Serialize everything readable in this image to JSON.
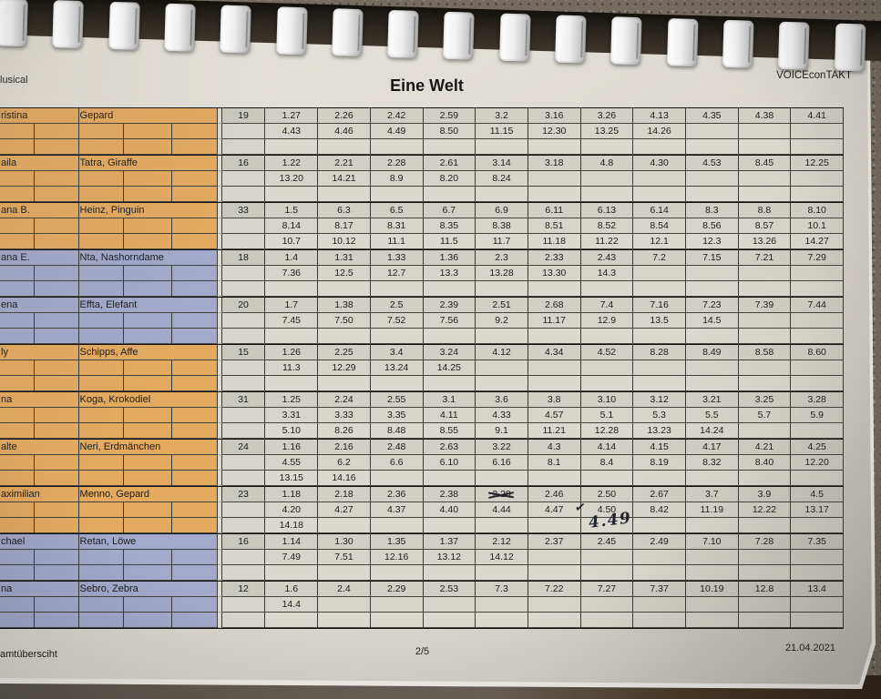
{
  "page": {
    "header_left": "lusical",
    "title": "Eine Welt",
    "header_right": "VOICEconTAKT"
  },
  "footer": {
    "left": "amtübersciht",
    "center": "2/5",
    "right": "21.04.2021"
  },
  "colors": {
    "orange_row": "#e3aa60",
    "blue_row": "#a2a9ca",
    "paper": "#ddd9d2"
  },
  "binding": {
    "clip_count": 16
  },
  "handwriting": {
    "check_mark": "✓",
    "note": "4.49"
  },
  "table": {
    "blocks": [
      {
        "performer": "ristina",
        "role": "Gepard",
        "count": "19",
        "color": "orange",
        "rows": [
          [
            "1.27",
            "2.26",
            "2.42",
            "2.59",
            "3.2",
            "3.16",
            "3.26",
            "4.13",
            "4.35",
            "4.38",
            "4.41"
          ],
          [
            "4.43",
            "4.46",
            "4.49",
            "8.50",
            "11.15",
            "12.30",
            "13.25",
            "14.26"
          ],
          []
        ]
      },
      {
        "performer": "aila",
        "role": "Tatra, Giraffe",
        "count": "16",
        "color": "orange",
        "rows": [
          [
            "1.22",
            "2.21",
            "2.28",
            "2.61",
            "3.14",
            "3.18",
            "4.8",
            "4.30",
            "4.53",
            "8.45",
            "12.25"
          ],
          [
            "13.20",
            "14.21",
            "8.9",
            "8.20",
            "8.24"
          ],
          []
        ]
      },
      {
        "performer": "ana B.",
        "role": "Heinz, Pinguin",
        "count": "33",
        "color": "orange",
        "rows": [
          [
            "1.5",
            "6.3",
            "6.5",
            "6.7",
            "6.9",
            "6.11",
            "6.13",
            "6.14",
            "8.3",
            "8.8",
            "8.10"
          ],
          [
            "8.14",
            "8.17",
            "8.31",
            "8.35",
            "8.38",
            "8.51",
            "8.52",
            "8.54",
            "8.56",
            "8.57",
            "10.1"
          ],
          [
            "10.7",
            "10.12",
            "11.1",
            "11.5",
            "11.7",
            "11.18",
            "11.22",
            "12.1",
            "12.3",
            "13.26",
            "14.27"
          ]
        ]
      },
      {
        "performer": "ana E.",
        "role": "Nta, Nashorndame",
        "count": "18",
        "color": "blue",
        "rows": [
          [
            "1.4",
            "1.31",
            "1.33",
            "1.36",
            "2.3",
            "2.33",
            "2.43",
            "7.2",
            "7.15",
            "7.21",
            "7.29"
          ],
          [
            "7.36",
            "12.5",
            "12.7",
            "13.3",
            "13.28",
            "13.30",
            "14.3"
          ],
          []
        ]
      },
      {
        "performer": "ena",
        "role": "Effta, Elefant",
        "count": "20",
        "color": "blue",
        "rows": [
          [
            "1.7",
            "1.38",
            "2.5",
            "2.39",
            "2.51",
            "2.68",
            "7.4",
            "7.16",
            "7.23",
            "7.39",
            "7.44"
          ],
          [
            "7.45",
            "7.50",
            "7.52",
            "7.56",
            "9.2",
            "11.17",
            "12.9",
            "13.5",
            "14.5"
          ],
          []
        ]
      },
      {
        "performer": "ly",
        "role": "Schipps, Affe",
        "count": "15",
        "color": "orange",
        "rows": [
          [
            "1.26",
            "2.25",
            "3.4",
            "3.24",
            "4.12",
            "4.34",
            "4.52",
            "8.28",
            "8.49",
            "8.58",
            "8.60"
          ],
          [
            "11.3",
            "12.29",
            "13.24",
            "14.25"
          ],
          []
        ]
      },
      {
        "performer": "na",
        "role": "Koga, Krokodiel",
        "count": "31",
        "color": "orange",
        "rows": [
          [
            "1.25",
            "2.24",
            "2.55",
            "3.1",
            "3.6",
            "3.8",
            "3.10",
            "3.12",
            "3.21",
            "3.25",
            "3.28"
          ],
          [
            "3.31",
            "3.33",
            "3.35",
            "4.11",
            "4.33",
            "4.57",
            "5.1",
            "5.3",
            "5.5",
            "5.7",
            "5.9"
          ],
          [
            "5.10",
            "8.26",
            "8.48",
            "8.55",
            "9.1",
            "11.21",
            "12.28",
            "13.23",
            "14.24"
          ]
        ]
      },
      {
        "performer": "alte",
        "role": "Neri, Erdmänchen",
        "count": "24",
        "color": "orange",
        "rows": [
          [
            "1.16",
            "2.16",
            "2.48",
            "2.63",
            "3.22",
            "4.3",
            "4.14",
            "4.15",
            "4.17",
            "4.21",
            "4.25"
          ],
          [
            "4.55",
            "6.2",
            "6.6",
            "6.10",
            "6.16",
            "8.1",
            "8.4",
            "8.19",
            "8.32",
            "8.40",
            "12.20"
          ],
          [
            "13.15",
            "14.16"
          ]
        ]
      },
      {
        "performer": "aximilian",
        "role": "Menno, Gepard",
        "count": "23",
        "color": "orange",
        "rows": [
          [
            "1.18",
            "2.18",
            "2.36",
            "2.38",
            {
              "t": "2.28",
              "struck": true
            },
            "2.46",
            "2.50",
            "2.67",
            "3.7",
            "3.9",
            "4.5"
          ],
          [
            "4.20",
            "4.27",
            "4.37",
            "4.40",
            "4.44",
            "4.47",
            {
              "t": "4.50",
              "check": true
            },
            "8.42",
            "11.19",
            "12.22",
            "13.17"
          ],
          [
            "14.18",
            "",
            "",
            "",
            "",
            "",
            {
              "hand": "4.49"
            }
          ]
        ]
      },
      {
        "performer": "chael",
        "role": "Retan, Löwe",
        "count": "16",
        "color": "blue",
        "rows": [
          [
            "1.14",
            "1.30",
            "1.35",
            "1.37",
            "2.12",
            "2.37",
            "2.45",
            "2.49",
            "7.10",
            "7.28",
            "7.35"
          ],
          [
            "7.49",
            "7.51",
            "12.16",
            "13.12",
            "14.12"
          ],
          []
        ]
      },
      {
        "performer": "na",
        "role": "Sebro, Zebra",
        "count": "12",
        "color": "blue",
        "rows": [
          [
            "1.6",
            "2.4",
            "2.29",
            "2.53",
            "7.3",
            "7.22",
            "7.27",
            "7.37",
            "10.19",
            "12.8",
            "13.4"
          ],
          [
            "14.4"
          ],
          []
        ]
      }
    ]
  }
}
